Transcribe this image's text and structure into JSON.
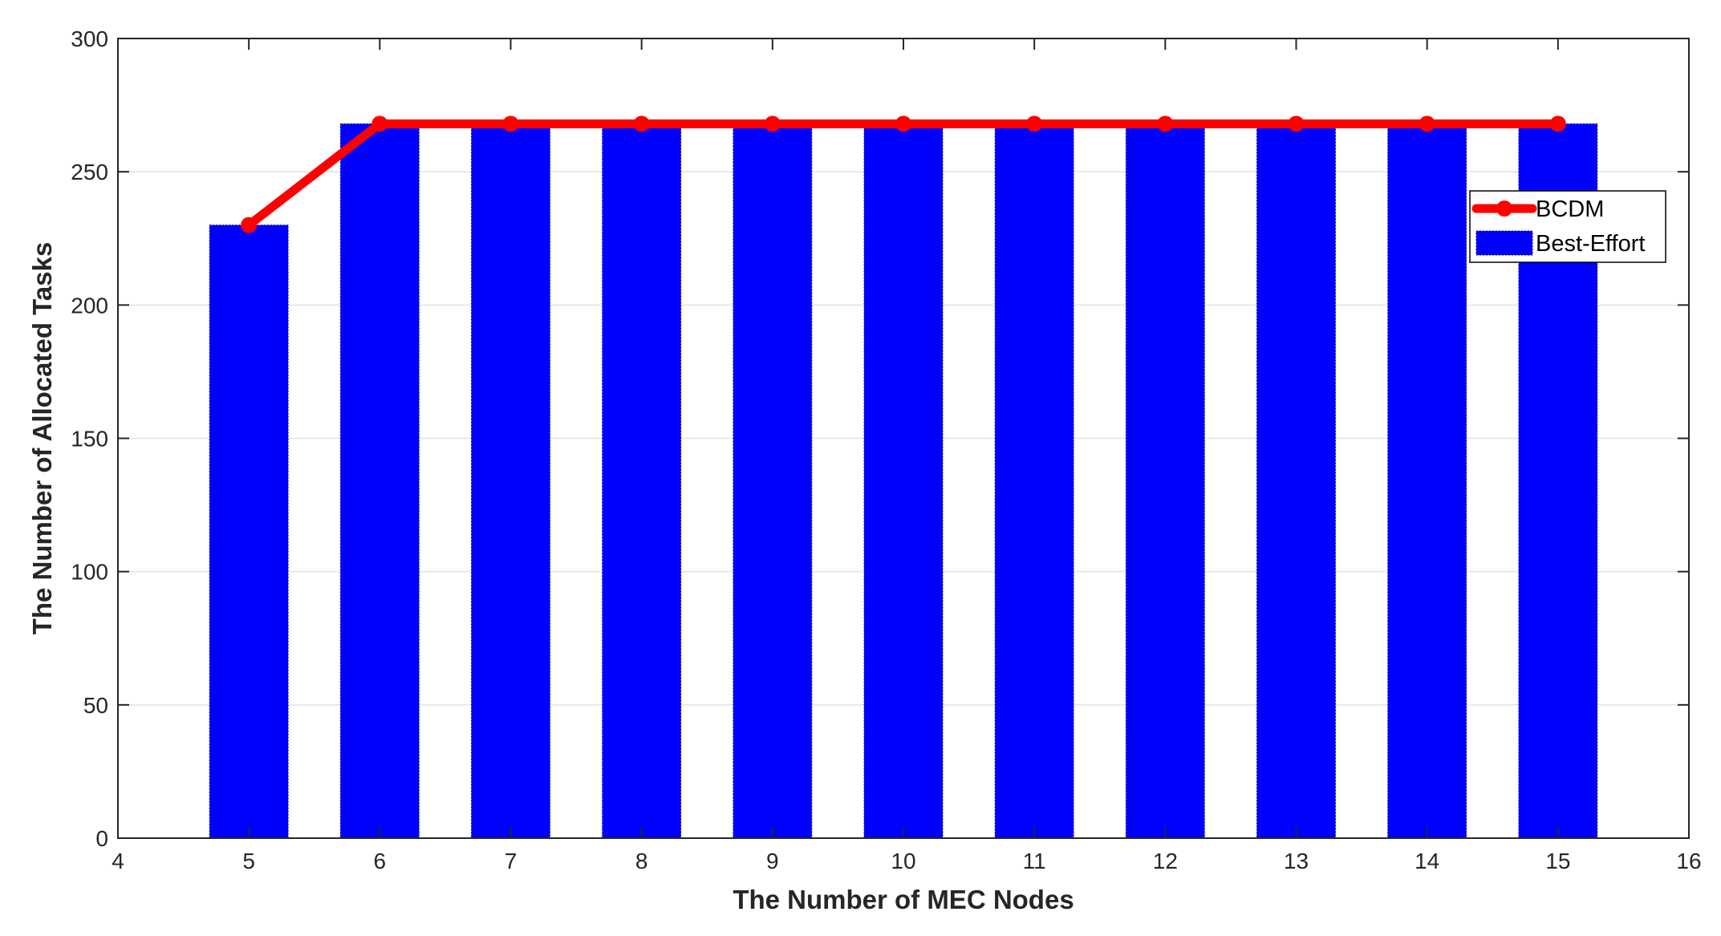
{
  "chart_data": {
    "type": "bar",
    "title": "",
    "xlabel": "The Number of MEC Nodes",
    "ylabel": "The Number of Allocated Tasks",
    "xlim": [
      4,
      16
    ],
    "ylim": [
      0,
      300
    ],
    "xticks": [
      4,
      5,
      6,
      7,
      8,
      9,
      10,
      11,
      12,
      13,
      14,
      15,
      16
    ],
    "yticks": [
      0,
      50,
      100,
      150,
      200,
      250,
      300
    ],
    "grid": "horizontal",
    "legend_position": "upper-right",
    "x": [
      5,
      6,
      7,
      8,
      9,
      10,
      11,
      12,
      13,
      14,
      15
    ],
    "series": [
      {
        "name": "BCDM",
        "kind": "line",
        "marker": "circle",
        "color": "#ff0000",
        "values": [
          230,
          268,
          268,
          268,
          268,
          268,
          268,
          268,
          268,
          268,
          268
        ]
      },
      {
        "name": "Best-Effort",
        "kind": "bar",
        "color": "#0000ff",
        "values": [
          230,
          268,
          268,
          268,
          268,
          268,
          268,
          268,
          268,
          268,
          268
        ]
      }
    ]
  }
}
